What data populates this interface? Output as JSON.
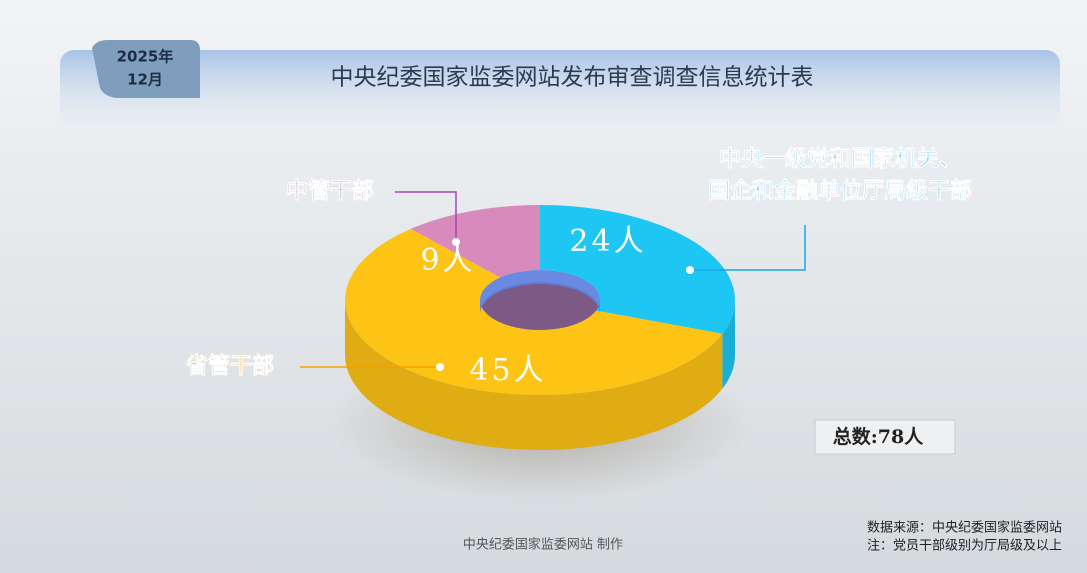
{
  "chart_data": {
    "type": "pie",
    "title": "中央纪委国家监委网站发布审查调查信息统计表",
    "date_year": "2025年",
    "date_month": "12月",
    "categories": [
      "中央一级党和国家机关、\n国企和金融单位厅局级干部",
      "省管干部",
      "中管干部"
    ],
    "values": [
      24,
      45,
      9
    ],
    "value_labels": [
      "24人",
      "45人",
      "9人"
    ],
    "colors": [
      "#1ec6f4",
      "#fdc416",
      "#d98abd"
    ],
    "label_colors": [
      "#1aa6e6",
      "#f5a100",
      "#a845b0"
    ],
    "donut": true,
    "total_label": "总数:78人",
    "footer": "中央纪委国家监委网站 制作",
    "source": "数据来源：中央纪委国家监委网站",
    "note": "注：党员干部级别为厅局级及以上"
  }
}
